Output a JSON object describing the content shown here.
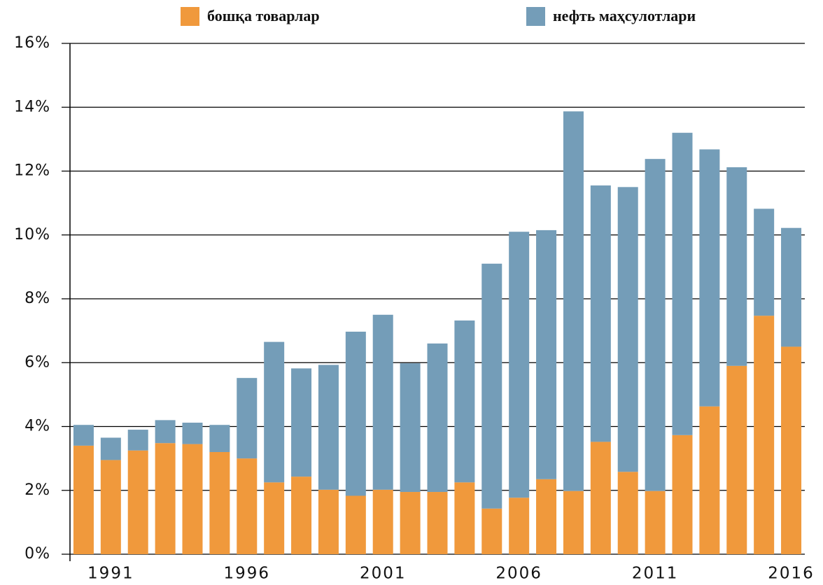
{
  "chart_data": {
    "type": "bar",
    "stacked": true,
    "categories": [
      null,
      "1991",
      null,
      null,
      null,
      null,
      "1996",
      null,
      null,
      null,
      null,
      "2001",
      null,
      null,
      null,
      null,
      "2006",
      null,
      null,
      null,
      null,
      "2011",
      null,
      null,
      null,
      null,
      "2016"
    ],
    "series": [
      {
        "name": "бошқа товарлар",
        "color": "#f0993c",
        "values": [
          3.4,
          2.95,
          3.25,
          3.48,
          3.45,
          3.2,
          3.0,
          2.25,
          2.43,
          2.02,
          1.83,
          2.02,
          1.95,
          1.95,
          2.25,
          1.43,
          1.77,
          2.35,
          1.98,
          3.52,
          2.58,
          1.98,
          3.73,
          4.63,
          5.9,
          7.47,
          6.5
        ]
      },
      {
        "name": "нефть маҳсулотлари",
        "color": "#749db8",
        "values": [
          0.65,
          0.7,
          0.65,
          0.72,
          0.67,
          0.85,
          2.52,
          4.4,
          3.39,
          3.91,
          5.14,
          5.48,
          4.03,
          4.65,
          5.07,
          7.67,
          8.33,
          7.8,
          11.89,
          8.03,
          8.92,
          10.4,
          9.47,
          8.05,
          6.22,
          3.35,
          3.72
        ]
      }
    ],
    "ylim": [
      0,
      16
    ],
    "yticks": [
      {
        "value": 0,
        "label": "0%"
      },
      {
        "value": 2,
        "label": "2%"
      },
      {
        "value": 4,
        "label": "4%"
      },
      {
        "value": 6,
        "label": "6%"
      },
      {
        "value": 8,
        "label": "8%"
      },
      {
        "value": 10,
        "label": "10%"
      },
      {
        "value": 12,
        "label": "12%"
      },
      {
        "value": 14,
        "label": "14%"
      },
      {
        "value": 16,
        "label": "16%"
      }
    ],
    "grid": true,
    "legend": "top"
  }
}
